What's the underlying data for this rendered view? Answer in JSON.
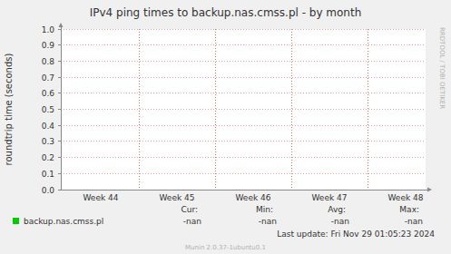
{
  "chart_data": {
    "type": "line",
    "title": "IPv4 ping times to backup.nas.cmss.pl - by month",
    "y_label": "roundtrip time (seconds)",
    "categories": [
      "Week 44",
      "Week 45",
      "Week 46",
      "Week 47",
      "Week 48"
    ],
    "series": [
      {
        "name": "backup.nas.cmss.pl",
        "color": "#00cc00",
        "values": [
          null,
          null,
          null,
          null,
          null
        ],
        "stats": [
          "-nan",
          "-nan",
          "-nan",
          "-nan"
        ]
      }
    ],
    "stats_headers": [
      "Cur:",
      "Min:",
      "Avg:",
      "Max:"
    ],
    "ylim": [
      0,
      1
    ],
    "yticks": [
      {
        "value": 0,
        "label": "0.0"
      },
      0.1,
      0.2,
      0.3,
      0.4,
      0.5,
      0.6,
      0.7,
      0.8,
      0.9,
      {
        "value": 1,
        "label": "1.0"
      }
    ],
    "grid": true,
    "last_update": "Last update: Fri Nov 29 01:05:23 2024",
    "footer": "Munin 2.0.37-1ubuntu0.1",
    "watermark": "RRDTOOL / TOBI OETIKER"
  }
}
